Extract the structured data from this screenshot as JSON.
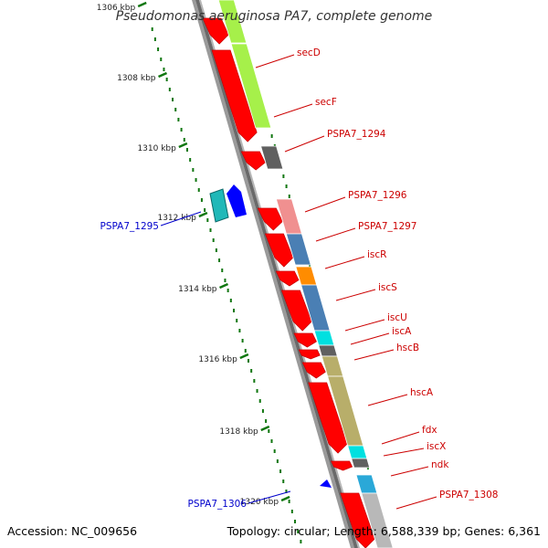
{
  "title": "Pseudomonas aeruginosa PA7, complete genome",
  "footer": {
    "accession": "Accession: NC_009656",
    "stats": "Topology: circular; Length: 6,588,339 bp; Genes: 6,361"
  },
  "colors": {
    "cds_strand": "#ff0000",
    "label_forward": "#cc0000",
    "label_reverse": "#0000cc",
    "ticks": "#117711",
    "backbone": "#777777"
  },
  "scale": {
    "ticks": [
      "1306 kbp",
      "1308 kbp",
      "1310 kbp",
      "1312 kbp",
      "1314 kbp",
      "1316 kbp",
      "1318 kbp",
      "1320 kbp"
    ]
  },
  "genes_forward": [
    {
      "label": "secD",
      "color": "#a6f04a"
    },
    {
      "label": "secF",
      "color": "#a6f04a"
    },
    {
      "label": "PSPA7_1294",
      "color": "#606060"
    },
    {
      "label": "PSPA7_1296",
      "color": "#f09090"
    },
    {
      "label": "PSPA7_1297",
      "color": "#4a7fb4"
    },
    {
      "label": "iscR",
      "color": "#ff8c00"
    },
    {
      "label": "iscS",
      "color": "#4a7fb4"
    },
    {
      "label": "iscU",
      "color": "#00e0e0"
    },
    {
      "label": "iscA",
      "color": "#606060"
    },
    {
      "label": "hscB",
      "color": "#b8ae6a"
    },
    {
      "label": "hscA",
      "color": "#b8ae6a"
    },
    {
      "label": "fdx",
      "color": "#00e0e0"
    },
    {
      "label": "iscX",
      "color": "#606060"
    },
    {
      "label": "ndk",
      "color": "#2aa8d8"
    },
    {
      "label": "PSPA7_1308",
      "color": "#b8b8b8"
    }
  ],
  "genes_reverse": [
    {
      "label": "PSPA7_1295",
      "color": "#20b8b8"
    },
    {
      "label": "PSPA7_1306",
      "color": "#0000ff"
    }
  ]
}
